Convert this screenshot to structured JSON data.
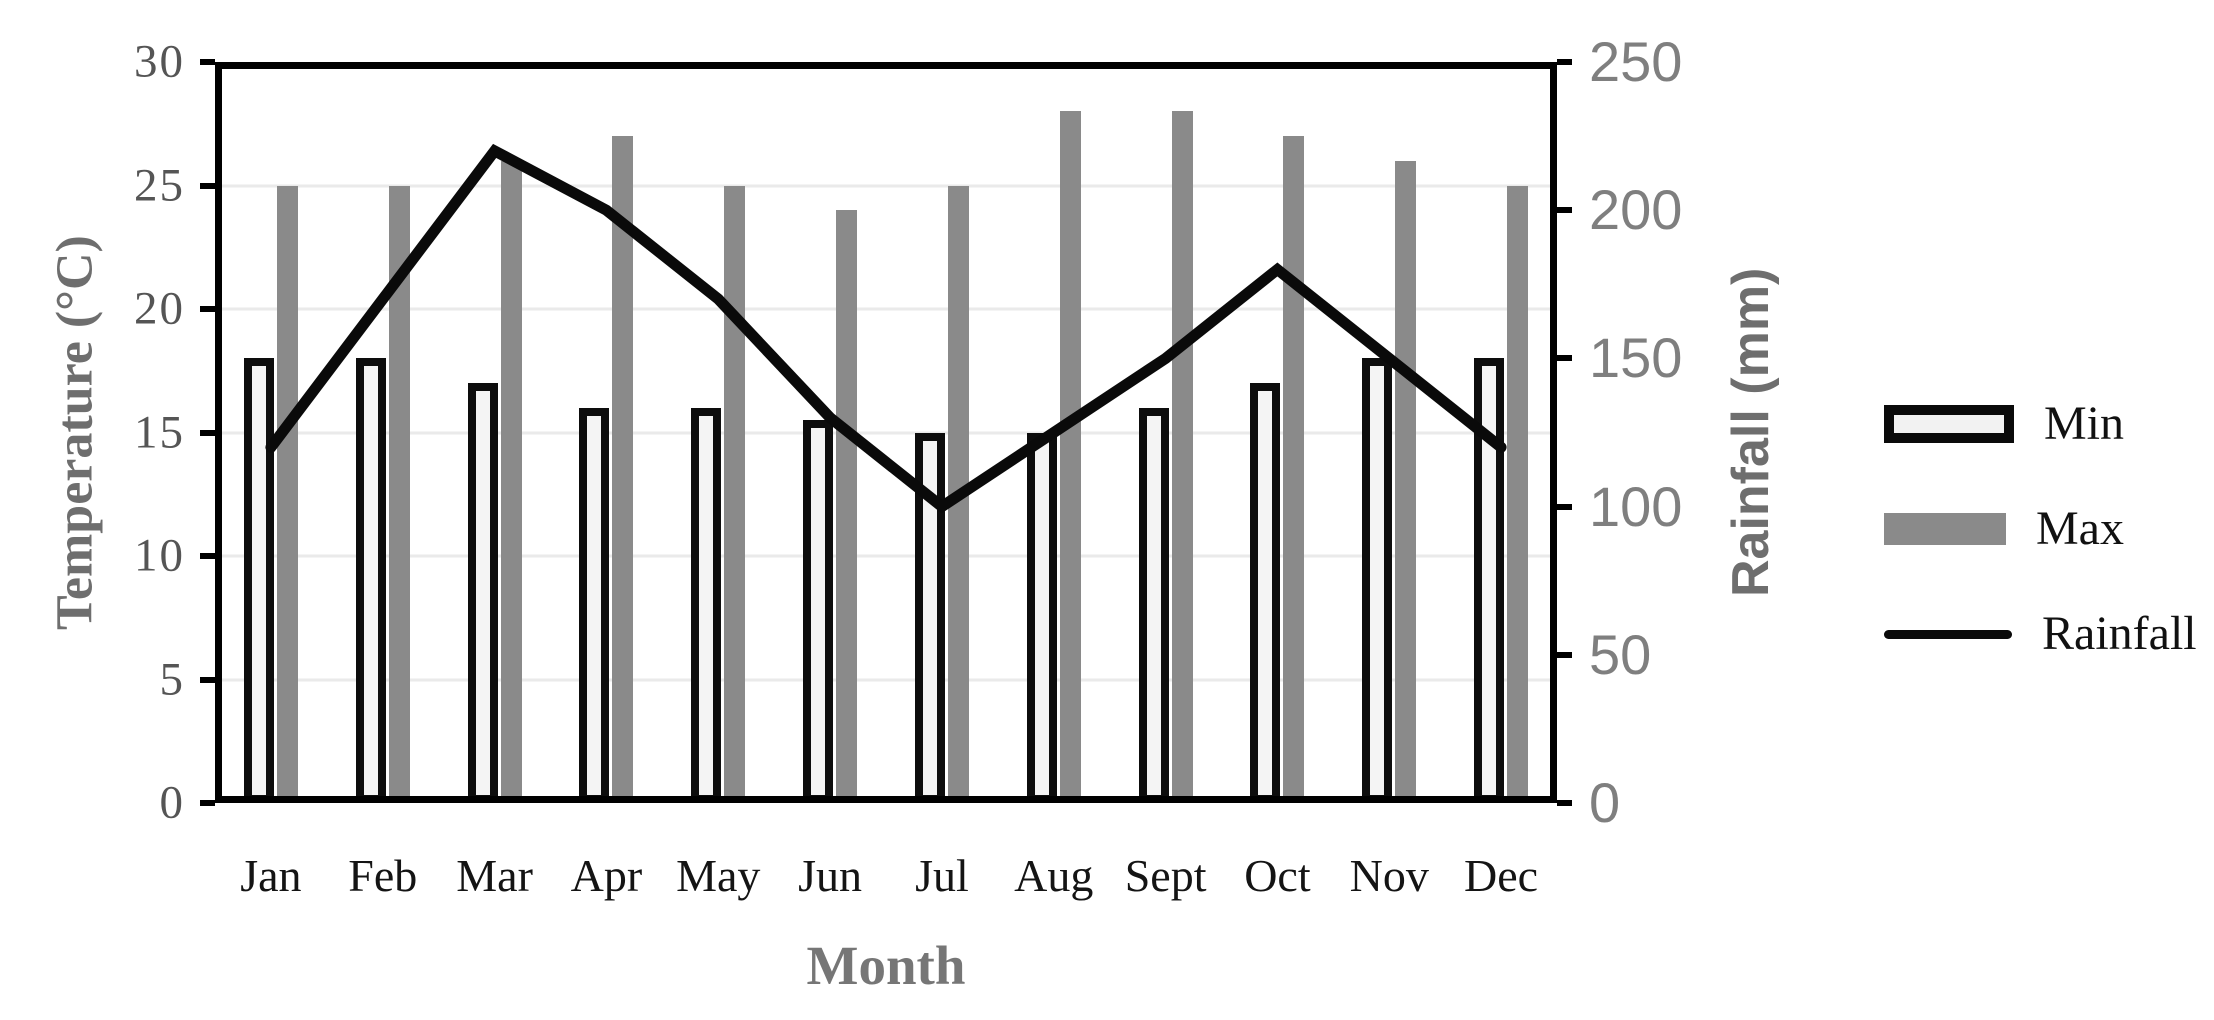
{
  "chart_data": {
    "type": "bar+line combo",
    "categories": [
      "Jan",
      "Feb",
      "Mar",
      "Apr",
      "May",
      "Jun",
      "Jul",
      "Aug",
      "Sept",
      "Oct",
      "Nov",
      "Dec"
    ],
    "series": [
      {
        "name": "Min",
        "type": "bar",
        "axis": "left",
        "values": [
          18,
          18,
          17,
          16,
          16,
          15.5,
          15,
          15,
          16,
          17,
          18,
          18
        ]
      },
      {
        "name": "Max",
        "type": "bar",
        "axis": "left",
        "values": [
          25,
          25,
          26,
          27,
          25,
          24,
          25,
          28,
          28,
          27,
          26,
          25
        ]
      },
      {
        "name": "Rainfall",
        "type": "line",
        "axis": "right",
        "values": [
          120,
          170,
          220,
          200,
          170,
          130,
          100,
          125,
          150,
          180,
          150,
          120
        ]
      }
    ],
    "left_axis": {
      "title": "Temperature (°C)",
      "min": 0,
      "max": 30,
      "step": 5,
      "tick_labels": [
        "30",
        "25",
        "20",
        "15",
        "10",
        "5",
        "0"
      ]
    },
    "right_axis": {
      "title": "Rainfall (mm)",
      "min": 0,
      "max": 250,
      "step": 50,
      "tick_labels": [
        "250",
        "200",
        "150",
        "100",
        "50",
        "0"
      ]
    },
    "x_axis": {
      "title": "Month"
    },
    "legend": {
      "position": "right",
      "entries": [
        "Min",
        "Max",
        "Rainfall"
      ]
    },
    "grid": {
      "horizontal": true,
      "values": [
        5,
        10,
        15,
        20,
        25
      ]
    },
    "colors": {
      "max_bar": "#8a8a8a",
      "min_bar_fill": "#f4f4f4",
      "min_bar_border": "#0d0d0d",
      "rainfall_line": "#0a0a0a",
      "plot_frame": "#000000",
      "gridline": "#eaeaea",
      "left_tick_text": "#555555",
      "right_tick_text": "#7f7f7f",
      "axis_title_text": "#6e6e6e",
      "month_text": "#141414"
    }
  }
}
